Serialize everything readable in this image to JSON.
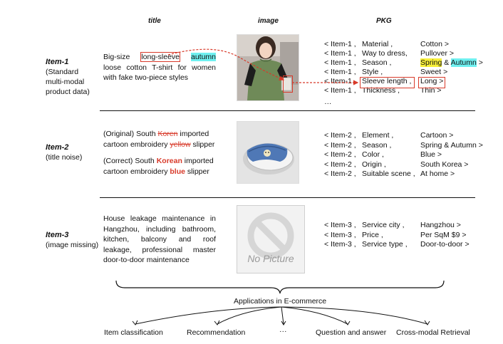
{
  "headers": {
    "title": "title",
    "image": "image",
    "pkg": "PKG"
  },
  "items": [
    {
      "name": "Item-1",
      "desc": [
        "(Standard",
        "multi-modal",
        "product data)"
      ],
      "title": {
        "t1": "Big-size ",
        "boxed": "long-sleeve",
        "t2": " ",
        "cyan": "autumn",
        "t3": " loose cotton T-shirt for women with fake two-piece styles"
      },
      "image_alt": "woman-in-green-tshirt-photo",
      "pkg": [
        [
          "< Item-1 ,",
          "Material ,",
          "Cotton >"
        ],
        [
          "< Item-1 ,",
          "Way to dress,",
          "Pullover >"
        ],
        [
          "< Item-1 ,",
          "Season ,",
          ""
        ],
        [
          "< Item-1 ,",
          "Style ,",
          "Sweet >"
        ],
        [
          "< Item-1 ,",
          "Sleeve length ,",
          "Long >"
        ],
        [
          "< Item-1 ,",
          "Thickness ,",
          "Thin >"
        ]
      ],
      "season_value": {
        "yellow": "Spring",
        "amp": " & ",
        "cyan": "Autumn",
        "end": " >"
      },
      "ellipsis": "…"
    },
    {
      "name": "Item-2",
      "desc": [
        "(title noise)"
      ],
      "original": {
        "t1": "(Original) South ",
        "strike1": "Koren",
        "t2": " imported cartoon embroidery ",
        "strike2": "yellow",
        "t3": " slipper"
      },
      "correct": {
        "t1": "(Correct) South ",
        "red1": "Korean",
        "t2": " imported cartoon embroidery ",
        "red2": "blue",
        "t3": " slipper"
      },
      "image_alt": "blue-slipper-photo",
      "pkg": [
        [
          "< Item-2 ,",
          "Element ,",
          "Cartoon >"
        ],
        [
          "< Item-2 ,",
          "Season ,",
          "Spring & Autumn >"
        ],
        [
          "< Item-2 ,",
          "Color ,",
          "Blue >"
        ],
        [
          "< Item-2 ,",
          "Origin ,",
          "South Korea >"
        ],
        [
          "< Item-2 ,",
          "Suitable scene ,",
          "At home >"
        ]
      ]
    },
    {
      "name": "Item-3",
      "desc": [
        "(image missing)"
      ],
      "title": "House leakage maintenance in Hangzhou, including bathroom, kitchen, balcony and roof leakage, professional master door-to-door maintenance",
      "no_picture": "No Picture",
      "pkg": [
        [
          "< Item-3 ,",
          "Service city ,",
          "Hangzhou >"
        ],
        [
          "< Item-3 ,",
          "Price ,",
          "Per SqM $9 >"
        ],
        [
          "< Item-3 ,",
          "Service type ,",
          "Door-to-door >"
        ]
      ]
    }
  ],
  "applications": {
    "title": "Applications in E-commerce",
    "list": [
      "Item classification",
      "Recommendation",
      "···",
      "Question and answer",
      "Cross-modal Retrieval"
    ]
  },
  "colors": {
    "highlight_red": "#d83a2a",
    "highlight_yellow": "#f7ef3a",
    "highlight_cyan": "#6ff0f0"
  }
}
